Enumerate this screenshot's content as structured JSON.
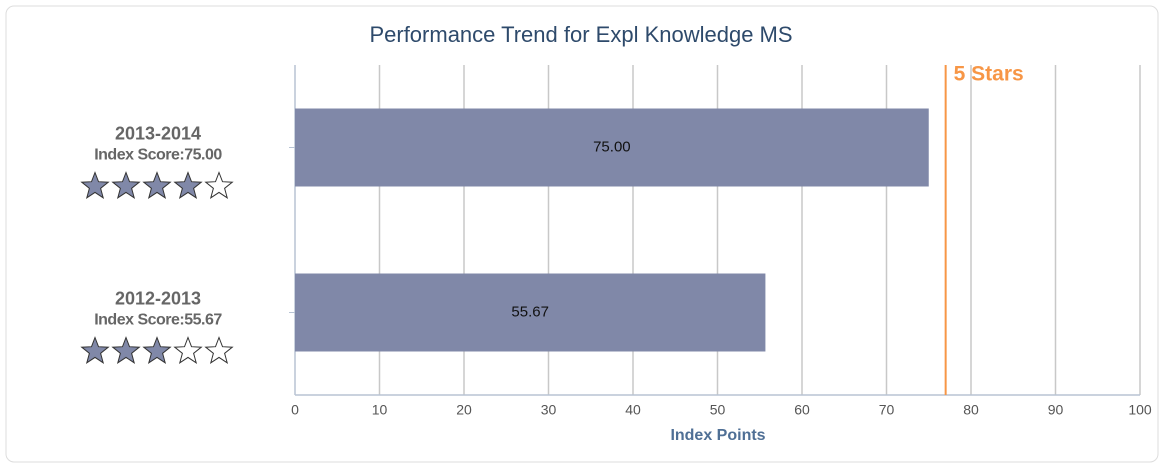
{
  "chart_data": {
    "type": "bar",
    "orientation": "horizontal",
    "title": "Performance Trend for Expl Knowledge MS",
    "categories": [
      "2013-2014",
      "2012-2013"
    ],
    "score_labels": [
      "Index Score:75.00",
      "Index Score:55.67"
    ],
    "values": [
      75,
      55.67
    ],
    "value_labels": [
      "75.00",
      "55.67"
    ],
    "stars": [
      4,
      3
    ],
    "max_stars": 5,
    "color": "#8088a8",
    "threshold": {
      "value": 77,
      "label": "5 Stars",
      "color": "#f79646"
    },
    "xlabel": "Index Points",
    "xlim": [
      0,
      100
    ],
    "xticks": [
      0,
      10,
      20,
      30,
      40,
      50,
      60,
      70,
      80,
      90,
      100
    ],
    "grid": true
  }
}
